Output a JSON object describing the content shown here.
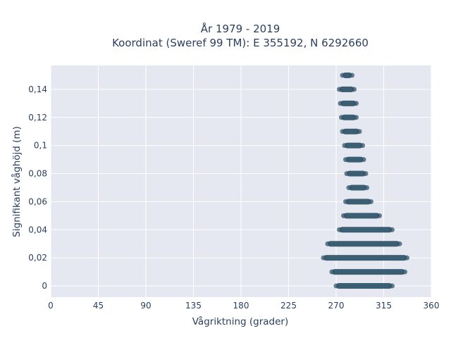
{
  "chart_data": {
    "type": "scatter",
    "title_line1": "År 1979 - 2019",
    "title_line2": "Koordinat (Sweref 99 TM): E 355192, N 6292660",
    "xlabel": "Vågriktning (grader)",
    "ylabel": "Signifikant våghöjd (m)",
    "xlim": [
      0,
      360
    ],
    "ylim": [
      -0.008,
      0.157
    ],
    "x_ticks": [
      0,
      45,
      90,
      135,
      180,
      225,
      270,
      315,
      360
    ],
    "x_tick_labels": [
      "0",
      "45",
      "90",
      "135",
      "180",
      "225",
      "270",
      "315",
      "360"
    ],
    "y_ticks": [
      0,
      0.02,
      0.04,
      0.06,
      0.08,
      0.1,
      0.12,
      0.14
    ],
    "y_tick_labels": [
      "0",
      "0,02",
      "0,04",
      "0,06",
      "0,08",
      "0,1",
      "0,12",
      "0,14"
    ],
    "grid": true,
    "marker_color": "#33566b",
    "background_color": "#e5e8f0",
    "series": [
      {
        "bands": [
          {
            "y": 0.0,
            "x_min": 270,
            "x_max": 323
          },
          {
            "y": 0.01,
            "x_min": 266,
            "x_max": 335
          },
          {
            "y": 0.02,
            "x_min": 258,
            "x_max": 337
          },
          {
            "y": 0.03,
            "x_min": 262,
            "x_max": 330
          },
          {
            "y": 0.04,
            "x_min": 273,
            "x_max": 323
          },
          {
            "y": 0.05,
            "x_min": 277,
            "x_max": 311
          },
          {
            "y": 0.06,
            "x_min": 279,
            "x_max": 303
          },
          {
            "y": 0.07,
            "x_min": 282,
            "x_max": 299
          },
          {
            "y": 0.08,
            "x_min": 280,
            "x_max": 298
          },
          {
            "y": 0.09,
            "x_min": 279,
            "x_max": 296
          },
          {
            "y": 0.1,
            "x_min": 278,
            "x_max": 295
          },
          {
            "y": 0.11,
            "x_min": 276,
            "x_max": 292
          },
          {
            "y": 0.12,
            "x_min": 275,
            "x_max": 289
          },
          {
            "y": 0.13,
            "x_min": 274,
            "x_max": 289
          },
          {
            "y": 0.14,
            "x_min": 273,
            "x_max": 287
          },
          {
            "y": 0.15,
            "x_min": 276,
            "x_max": 285
          }
        ]
      }
    ]
  }
}
